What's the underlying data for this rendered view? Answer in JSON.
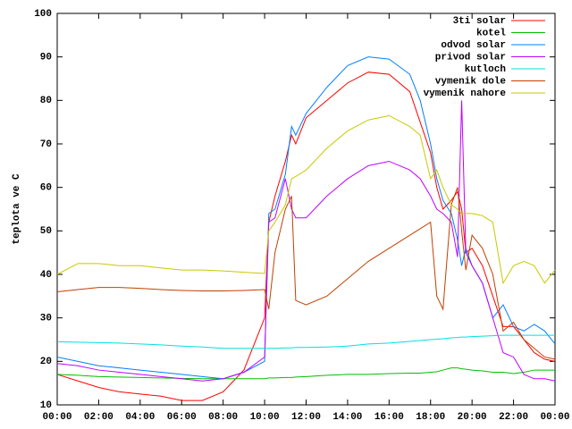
{
  "chart_data": {
    "type": "line",
    "ylabel": "teplota ve C",
    "x": [
      0,
      1,
      2,
      3,
      4,
      5,
      6,
      7,
      8,
      9,
      10,
      10.2,
      10.5,
      11,
      11.3,
      11.5,
      12,
      13,
      14,
      15,
      16,
      17,
      17.5,
      18,
      18.3,
      18.6,
      19,
      19.3,
      19.5,
      19.7,
      20,
      20.5,
      21,
      21.5,
      22,
      22.5,
      23,
      23.5,
      24
    ],
    "series": [
      {
        "name": "3ti solar",
        "color": "#ff0000",
        "values": [
          17,
          15.5,
          14,
          13,
          12.5,
          12,
          11,
          11,
          13,
          18,
          30,
          52,
          58,
          66,
          72,
          70,
          76,
          80,
          84,
          86.5,
          86,
          82,
          75,
          68,
          60,
          55,
          57,
          59,
          55,
          45,
          46,
          42,
          35,
          28,
          28,
          25,
          22,
          20.5,
          20
        ]
      },
      {
        "name": "kotel",
        "color": "#00c000",
        "values": [
          17,
          16.8,
          16.5,
          16.4,
          16.3,
          16.2,
          16.1,
          16,
          16,
          16,
          16,
          16.2,
          16.2,
          16.3,
          16.3,
          16.4,
          16.5,
          16.8,
          17,
          17,
          17.2,
          17.3,
          17.3,
          17.5,
          17.6,
          18,
          18.5,
          18.5,
          18.3,
          18.2,
          18,
          17.8,
          17.5,
          17.5,
          17.2,
          17.5,
          18,
          18,
          18
        ]
      },
      {
        "name": "odvod solar",
        "color": "#0080ff",
        "values": [
          21,
          20,
          19,
          18.5,
          18,
          17.5,
          17,
          16.5,
          16,
          17.5,
          20,
          54,
          55,
          63,
          74,
          72,
          77,
          83,
          88,
          90,
          89.5,
          86,
          80,
          70,
          62,
          57,
          54,
          48,
          42,
          46,
          42,
          38,
          30,
          33,
          28,
          27,
          28.5,
          27,
          24
        ]
      },
      {
        "name": "privod solar",
        "color": "#c000ff",
        "values": [
          19.5,
          19,
          18,
          17.5,
          17,
          16.5,
          16,
          15.5,
          16,
          17.5,
          21,
          52,
          53,
          62,
          55,
          53,
          53,
          58,
          62,
          65,
          66,
          64,
          62,
          58,
          55,
          54,
          52,
          44,
          80,
          45,
          42,
          38,
          30,
          22,
          21,
          17,
          16,
          16,
          15.5
        ]
      },
      {
        "name": "kutloch",
        "color": "#00e0e0",
        "values": [
          24.5,
          24.4,
          24.3,
          24.2,
          24,
          23.8,
          23.5,
          23.3,
          23,
          23,
          23,
          23,
          23,
          23.1,
          23.1,
          23.2,
          23.2,
          23.3,
          23.5,
          24,
          24.2,
          24.6,
          24.8,
          25,
          25.1,
          25.2,
          25.4,
          25.5,
          25.6,
          25.6,
          25.7,
          25.8,
          25.9,
          26,
          26,
          26,
          26,
          26,
          26
        ]
      },
      {
        "name": "vymenik dole",
        "color": "#c04000",
        "values": [
          36,
          36.5,
          37,
          37,
          36.8,
          36.5,
          36.3,
          36.2,
          36.2,
          36.3,
          36.5,
          32,
          45,
          55,
          58,
          34,
          33,
          35,
          39,
          43,
          46,
          49,
          50.5,
          52,
          35,
          32,
          56,
          60,
          50,
          41,
          49,
          46,
          40,
          27,
          29,
          25,
          23,
          21,
          20.5
        ]
      },
      {
        "name": "vymenik nahore",
        "color": "#c8c800",
        "values": [
          40,
          42.5,
          42.5,
          42,
          42,
          41.5,
          41,
          41,
          40.8,
          40.5,
          40.2,
          50,
          52,
          56,
          62,
          62.5,
          64,
          69,
          73,
          75.5,
          76.5,
          74,
          72,
          62,
          64,
          60,
          56,
          55,
          54,
          54,
          54,
          53.5,
          52,
          38,
          42,
          43,
          42,
          38,
          41
        ]
      }
    ],
    "xlim": [
      0,
      24
    ],
    "xticks": [
      {
        "value": 0,
        "label": "00:00"
      },
      {
        "value": 2,
        "label": "02:00"
      },
      {
        "value": 4,
        "label": "04:00"
      },
      {
        "value": 6,
        "label": "06:00"
      },
      {
        "value": 8,
        "label": "08:00"
      },
      {
        "value": 10,
        "label": "10:00"
      },
      {
        "value": 12,
        "label": "12:00"
      },
      {
        "value": 14,
        "label": "14:00"
      },
      {
        "value": 16,
        "label": "16:00"
      },
      {
        "value": 18,
        "label": "18:00"
      },
      {
        "value": 20,
        "label": "20:00"
      },
      {
        "value": 22,
        "label": "22:00"
      },
      {
        "value": 24,
        "label": "00:00"
      }
    ],
    "ylim": [
      10,
      100
    ],
    "yticks": [
      10,
      20,
      30,
      40,
      50,
      60,
      70,
      80,
      90,
      100
    ],
    "legend": "top-right"
  }
}
